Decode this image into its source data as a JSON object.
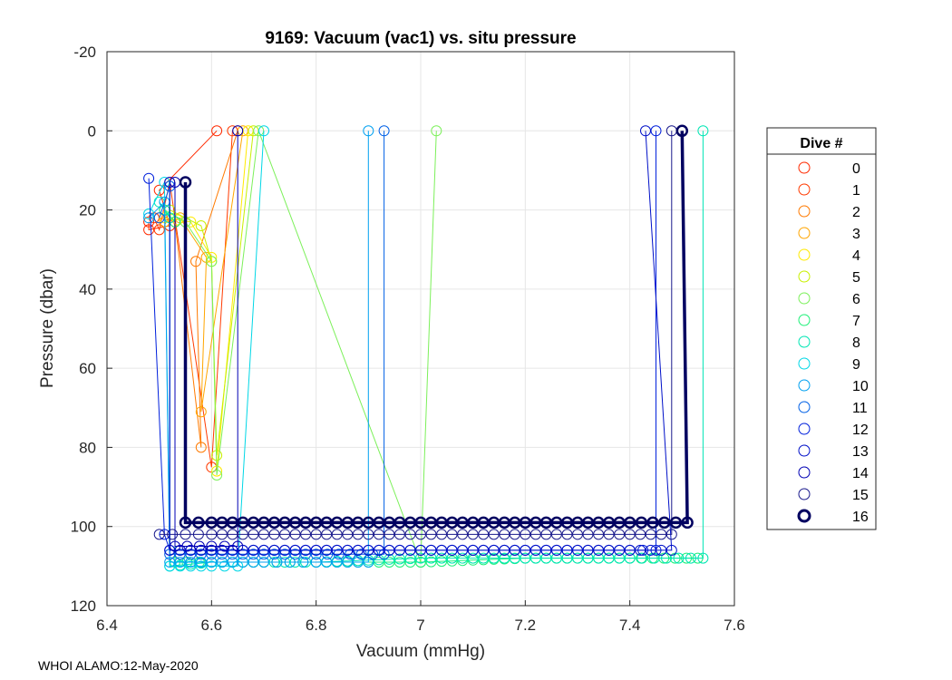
{
  "chart_data": {
    "type": "line",
    "title": "9169: Vacuum (vac1) vs. situ pressure",
    "xlabel": "Vacuum (mmHg)",
    "ylabel": "Pressure (dbar)",
    "xlim": [
      6.4,
      7.6
    ],
    "ylim": [
      -20,
      120
    ],
    "y_reversed": true,
    "grid": true,
    "xticks": [
      "6.4",
      "6.6",
      "6.8",
      "7",
      "7.2",
      "7.4",
      "7.6"
    ],
    "yticks": [
      "-20",
      "0",
      "20",
      "40",
      "60",
      "80",
      "100",
      "120"
    ],
    "legend_title": "Dive #",
    "legend_position": "outside-right",
    "series": [
      {
        "name": "0",
        "color": "#ff2a00",
        "points": [
          [
            6.48,
            23
          ],
          [
            6.48,
            25
          ],
          [
            6.52,
            24
          ],
          [
            6.5,
            15
          ],
          [
            6.61,
            0
          ]
        ]
      },
      {
        "name": "1",
        "color": "#ff3a00",
        "points": [
          [
            6.49,
            22
          ],
          [
            6.5,
            25
          ],
          [
            6.52,
            13
          ],
          [
            6.6,
            85
          ],
          [
            6.64,
            0
          ]
        ]
      },
      {
        "name": "2",
        "color": "#ff7a00",
        "points": [
          [
            6.5,
            22
          ],
          [
            6.53,
            23
          ],
          [
            6.58,
            80
          ],
          [
            6.57,
            33
          ],
          [
            6.65,
            0
          ]
        ]
      },
      {
        "name": "3",
        "color": "#ffa500",
        "points": [
          [
            6.51,
            23
          ],
          [
            6.54,
            22
          ],
          [
            6.59,
            32
          ],
          [
            6.58,
            71
          ],
          [
            6.66,
            0
          ]
        ]
      },
      {
        "name": "4",
        "color": "#ffea00",
        "points": [
          [
            6.51,
            22
          ],
          [
            6.56,
            23
          ],
          [
            6.6,
            32
          ],
          [
            6.61,
            86
          ],
          [
            6.67,
            0
          ]
        ]
      },
      {
        "name": "5",
        "color": "#c8f000",
        "points": [
          [
            6.52,
            20
          ],
          [
            6.58,
            24
          ],
          [
            6.6,
            33
          ],
          [
            6.61,
            82
          ],
          [
            6.68,
            0
          ]
        ]
      },
      {
        "name": "6",
        "color": "#7cf05a",
        "points": [
          [
            6.51,
            20
          ],
          [
            6.55,
            23
          ],
          [
            6.6,
            33
          ],
          [
            6.61,
            87
          ],
          [
            6.69,
            0
          ],
          [
            7.0,
            109
          ],
          [
            7.03,
            0
          ]
        ]
      },
      {
        "name": "7",
        "color": "#1ef078",
        "points": [
          [
            6.51,
            20
          ],
          [
            6.53,
            23
          ],
          [
            6.53,
            109
          ],
          [
            6.6,
            109
          ],
          [
            6.7,
            109
          ],
          [
            6.8,
            109
          ],
          [
            7.0,
            109
          ],
          [
            7.2,
            108
          ],
          [
            7.4,
            108
          ],
          [
            7.53,
            108
          ]
        ]
      },
      {
        "name": "8",
        "color": "#00e6b4",
        "points": [
          [
            6.5,
            18
          ],
          [
            6.52,
            22
          ],
          [
            6.52,
            110
          ],
          [
            6.6,
            109
          ],
          [
            6.8,
            109
          ],
          [
            7.0,
            108
          ],
          [
            7.2,
            108
          ],
          [
            7.4,
            108
          ],
          [
            7.54,
            108
          ],
          [
            7.54,
            0
          ]
        ]
      },
      {
        "name": "9",
        "color": "#00d7e6",
        "points": [
          [
            6.48,
            21
          ],
          [
            6.51,
            13
          ],
          [
            6.52,
            110
          ],
          [
            6.6,
            110
          ],
          [
            6.65,
            110
          ],
          [
            6.7,
            0
          ]
        ]
      },
      {
        "name": "10",
        "color": "#00a0f0",
        "points": [
          [
            6.48,
            22
          ],
          [
            6.51,
            18
          ],
          [
            6.52,
            109
          ],
          [
            6.6,
            109
          ],
          [
            6.7,
            109
          ],
          [
            6.8,
            109
          ],
          [
            6.9,
            109
          ],
          [
            6.9,
            0
          ]
        ]
      },
      {
        "name": "11",
        "color": "#0060e6",
        "points": [
          [
            6.5,
            22
          ],
          [
            6.52,
            14
          ],
          [
            6.52,
            107
          ],
          [
            6.6,
            107
          ],
          [
            6.8,
            107
          ],
          [
            6.93,
            107
          ],
          [
            6.93,
            0
          ]
        ]
      },
      {
        "name": "12",
        "color": "#0020dc",
        "points": [
          [
            6.48,
            12
          ],
          [
            6.51,
            102
          ],
          [
            6.52,
            106
          ],
          [
            6.6,
            106
          ],
          [
            6.8,
            106
          ],
          [
            7.0,
            106
          ],
          [
            7.2,
            106
          ],
          [
            7.4,
            106
          ],
          [
            7.45,
            106
          ],
          [
            7.45,
            0
          ]
        ]
      },
      {
        "name": "13",
        "color": "#0010c8",
        "points": [
          [
            6.52,
            13
          ],
          [
            6.52,
            106
          ],
          [
            6.6,
            106
          ],
          [
            6.8,
            106
          ],
          [
            7.0,
            106
          ],
          [
            7.2,
            106
          ],
          [
            7.4,
            106
          ],
          [
            7.48,
            106
          ],
          [
            7.43,
            0
          ]
        ]
      },
      {
        "name": "14",
        "color": "#0000b4",
        "points": [
          [
            6.53,
            13
          ],
          [
            6.53,
            105
          ],
          [
            6.6,
            105
          ],
          [
            6.65,
            105
          ],
          [
            6.65,
            0
          ]
        ]
      },
      {
        "name": "15",
        "color": "#1a1a8c",
        "points": [
          [
            6.5,
            102
          ],
          [
            6.55,
            102
          ],
          [
            6.6,
            102
          ],
          [
            6.8,
            102
          ],
          [
            7.0,
            102
          ],
          [
            7.2,
            102
          ],
          [
            7.4,
            102
          ],
          [
            7.48,
            102
          ],
          [
            7.48,
            0
          ]
        ]
      },
      {
        "name": "16",
        "color": "#000060",
        "bold": true,
        "points": [
          [
            6.55,
            13
          ],
          [
            6.55,
            99
          ],
          [
            6.6,
            99
          ],
          [
            6.8,
            99
          ],
          [
            7.0,
            99
          ],
          [
            7.2,
            99
          ],
          [
            7.4,
            99
          ],
          [
            7.51,
            99
          ],
          [
            7.5,
            0
          ]
        ]
      }
    ]
  },
  "footer": "WHOI ALAMO:12-May-2020"
}
